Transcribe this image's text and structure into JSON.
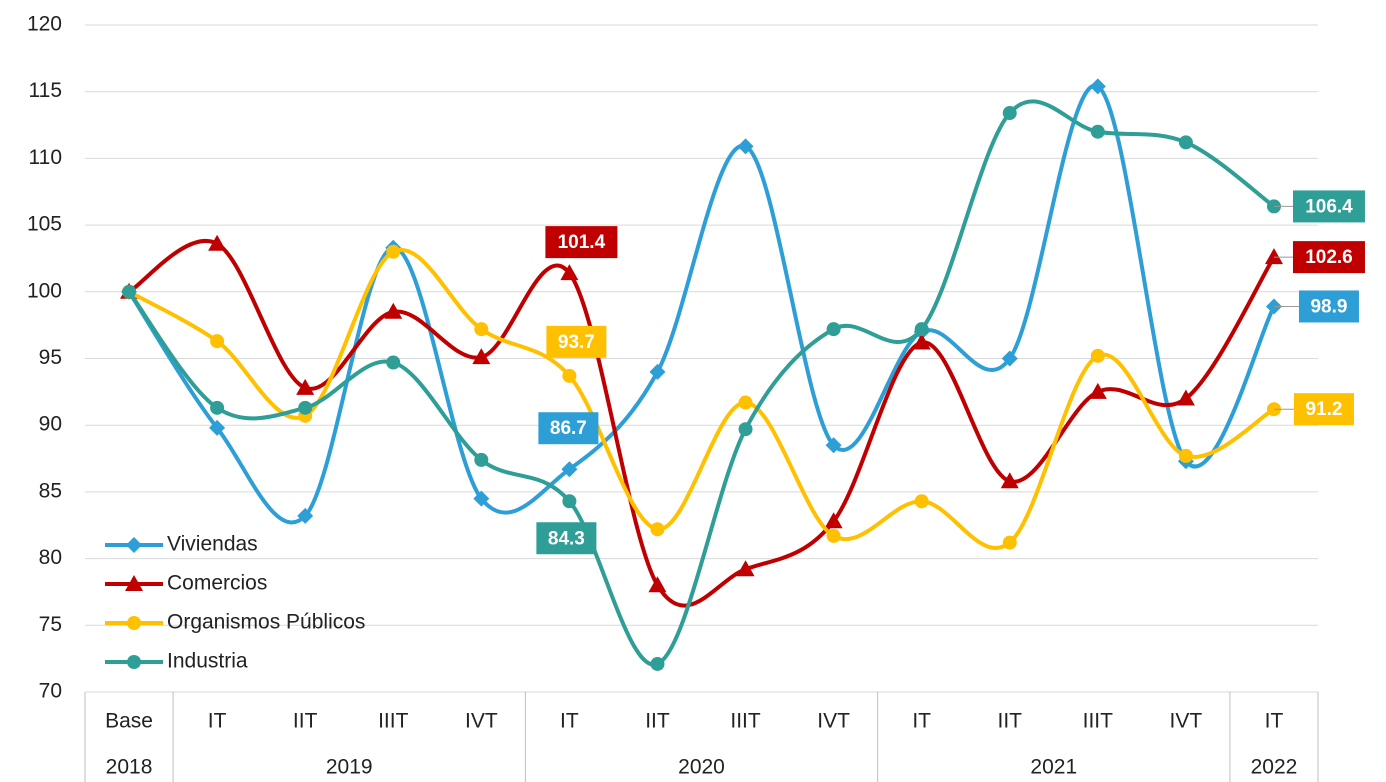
{
  "chart_data": {
    "type": "line",
    "categories": [
      "Base",
      "IT",
      "IIT",
      "IIIT",
      "IVT",
      "IT",
      "IIT",
      "IIIT",
      "IVT",
      "IT",
      "IIT",
      "IIIT",
      "IVT",
      "IT"
    ],
    "years": [
      "2018",
      "2019",
      null,
      null,
      null,
      "2020",
      null,
      null,
      null,
      "2021",
      null,
      null,
      null,
      "2022"
    ],
    "series": [
      {
        "name": "Viviendas",
        "color": "#2e9fd6",
        "marker": "diamond",
        "values": [
          100,
          89.8,
          83.2,
          103.3,
          84.5,
          86.7,
          94.0,
          110.9,
          88.5,
          97.0,
          95.0,
          115.4,
          87.3,
          98.9
        ],
        "value_labels": [
          null,
          null,
          null,
          null,
          null,
          "86.7",
          null,
          null,
          null,
          null,
          null,
          null,
          null,
          "98.9"
        ]
      },
      {
        "name": "Comercios",
        "color": "#c00000",
        "marker": "triangle",
        "values": [
          100,
          103.6,
          92.8,
          98.5,
          95.1,
          101.4,
          78.0,
          79.2,
          82.8,
          96.2,
          85.8,
          92.5,
          92.0,
          102.6
        ],
        "value_labels": [
          null,
          null,
          null,
          null,
          null,
          "101.4",
          null,
          null,
          null,
          null,
          null,
          null,
          null,
          "102.6"
        ]
      },
      {
        "name": "Organismos Públicos",
        "color": "#ffc000",
        "marker": "circle",
        "values": [
          100,
          96.3,
          90.7,
          103.0,
          97.2,
          93.7,
          82.2,
          91.7,
          81.7,
          84.3,
          81.2,
          95.2,
          87.7,
          91.2
        ],
        "value_labels": [
          null,
          null,
          null,
          null,
          null,
          "93.7",
          null,
          null,
          null,
          null,
          null,
          null,
          null,
          "91.2"
        ]
      },
      {
        "name": "Industria",
        "color": "#2e9e96",
        "marker": "circle",
        "values": [
          100,
          91.3,
          91.3,
          94.7,
          87.4,
          84.3,
          72.1,
          89.7,
          97.2,
          97.2,
          113.4,
          112.0,
          111.2,
          106.4
        ],
        "value_labels": [
          null,
          null,
          null,
          null,
          null,
          "84.3",
          null,
          null,
          null,
          null,
          null,
          null,
          null,
          "106.4"
        ]
      }
    ],
    "ylim": [
      70,
      120
    ],
    "yticks": [
      70,
      75,
      80,
      85,
      90,
      95,
      100,
      105,
      110,
      115,
      120
    ],
    "grid": true,
    "legend": "lower left"
  }
}
